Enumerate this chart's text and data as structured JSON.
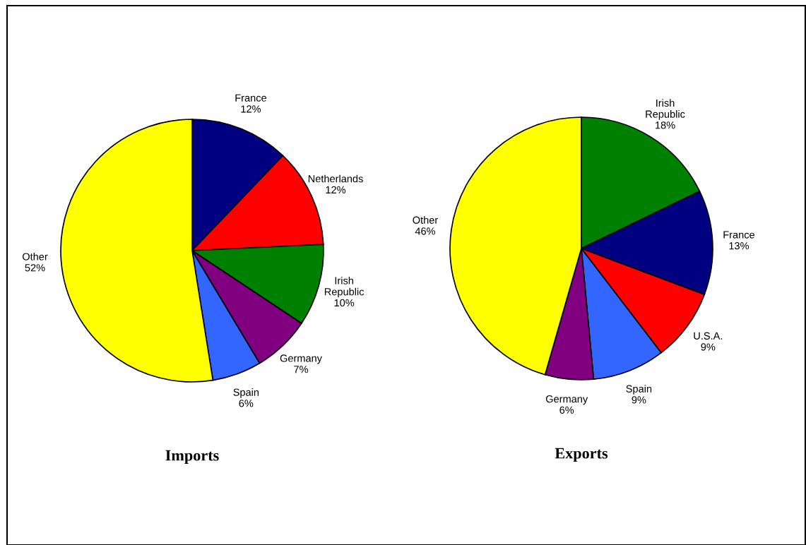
{
  "chart_data": [
    {
      "type": "pie",
      "title": "Imports",
      "categories": [
        "France",
        "Netherlands",
        "Irish Republic",
        "Germany",
        "Spain",
        "Other"
      ],
      "values": [
        12,
        12,
        10,
        7,
        6,
        52
      ],
      "value_labels": [
        "12%",
        "12%",
        "10%",
        "7%",
        "6%",
        "52%"
      ],
      "colors": [
        "#000080",
        "#ff0000",
        "#008000",
        "#800080",
        "#3366ff",
        "#ffff00"
      ]
    },
    {
      "type": "pie",
      "title": "Exports",
      "categories": [
        "Irish Republic",
        "France",
        "U.S.A.",
        "Spain",
        "Germany",
        "Other"
      ],
      "values": [
        18,
        13,
        9,
        9,
        6,
        46
      ],
      "value_labels": [
        "18%",
        "13%",
        "9%",
        "9%",
        "6%",
        "46%"
      ],
      "colors": [
        "#008000",
        "#000080",
        "#ff0000",
        "#3366ff",
        "#800080",
        "#ffff00"
      ]
    }
  ]
}
